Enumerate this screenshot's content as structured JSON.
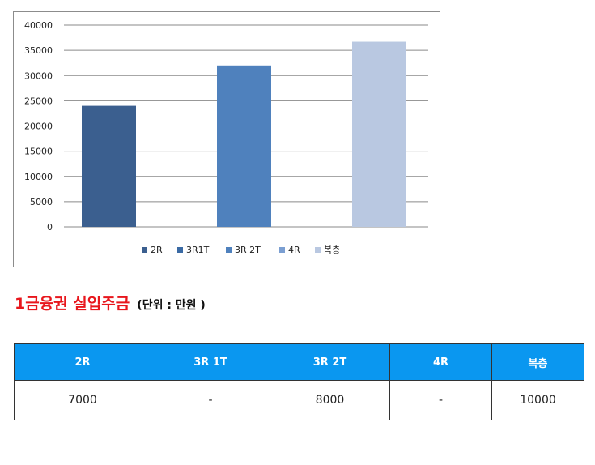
{
  "chart_data": {
    "type": "bar",
    "categories": [
      "2R",
      "3R1T",
      "3R 2T",
      "4R",
      "복층"
    ],
    "series": [
      {
        "name": "2R",
        "value": 24000,
        "color": "#3b5f8f"
      },
      {
        "name": "3R1T",
        "value": 0,
        "color": "#3a6aa4"
      },
      {
        "name": "3R 2T",
        "value": 32000,
        "color": "#4f81bd"
      },
      {
        "name": "4R",
        "value": 0,
        "color": "#7b9fd2"
      },
      {
        "name": "복층",
        "value": 36700,
        "color": "#b9c8e1"
      }
    ],
    "yticks": [
      "0",
      "5000",
      "10000",
      "15000",
      "20000",
      "25000",
      "30000",
      "35000",
      "40000"
    ],
    "ylim": [
      0,
      40000
    ],
    "grid": true,
    "legend_position": "bottom",
    "title": "",
    "xlabel": "",
    "ylabel": ""
  },
  "heading": {
    "main": "1금융권 실입주금",
    "unit": "(단위 : 만원 )"
  },
  "table": {
    "headers": [
      "2R",
      "3R 1T",
      "3R 2T",
      "4R",
      "복층"
    ],
    "row": [
      "7000",
      "-",
      "8000",
      "-",
      "10000"
    ]
  }
}
